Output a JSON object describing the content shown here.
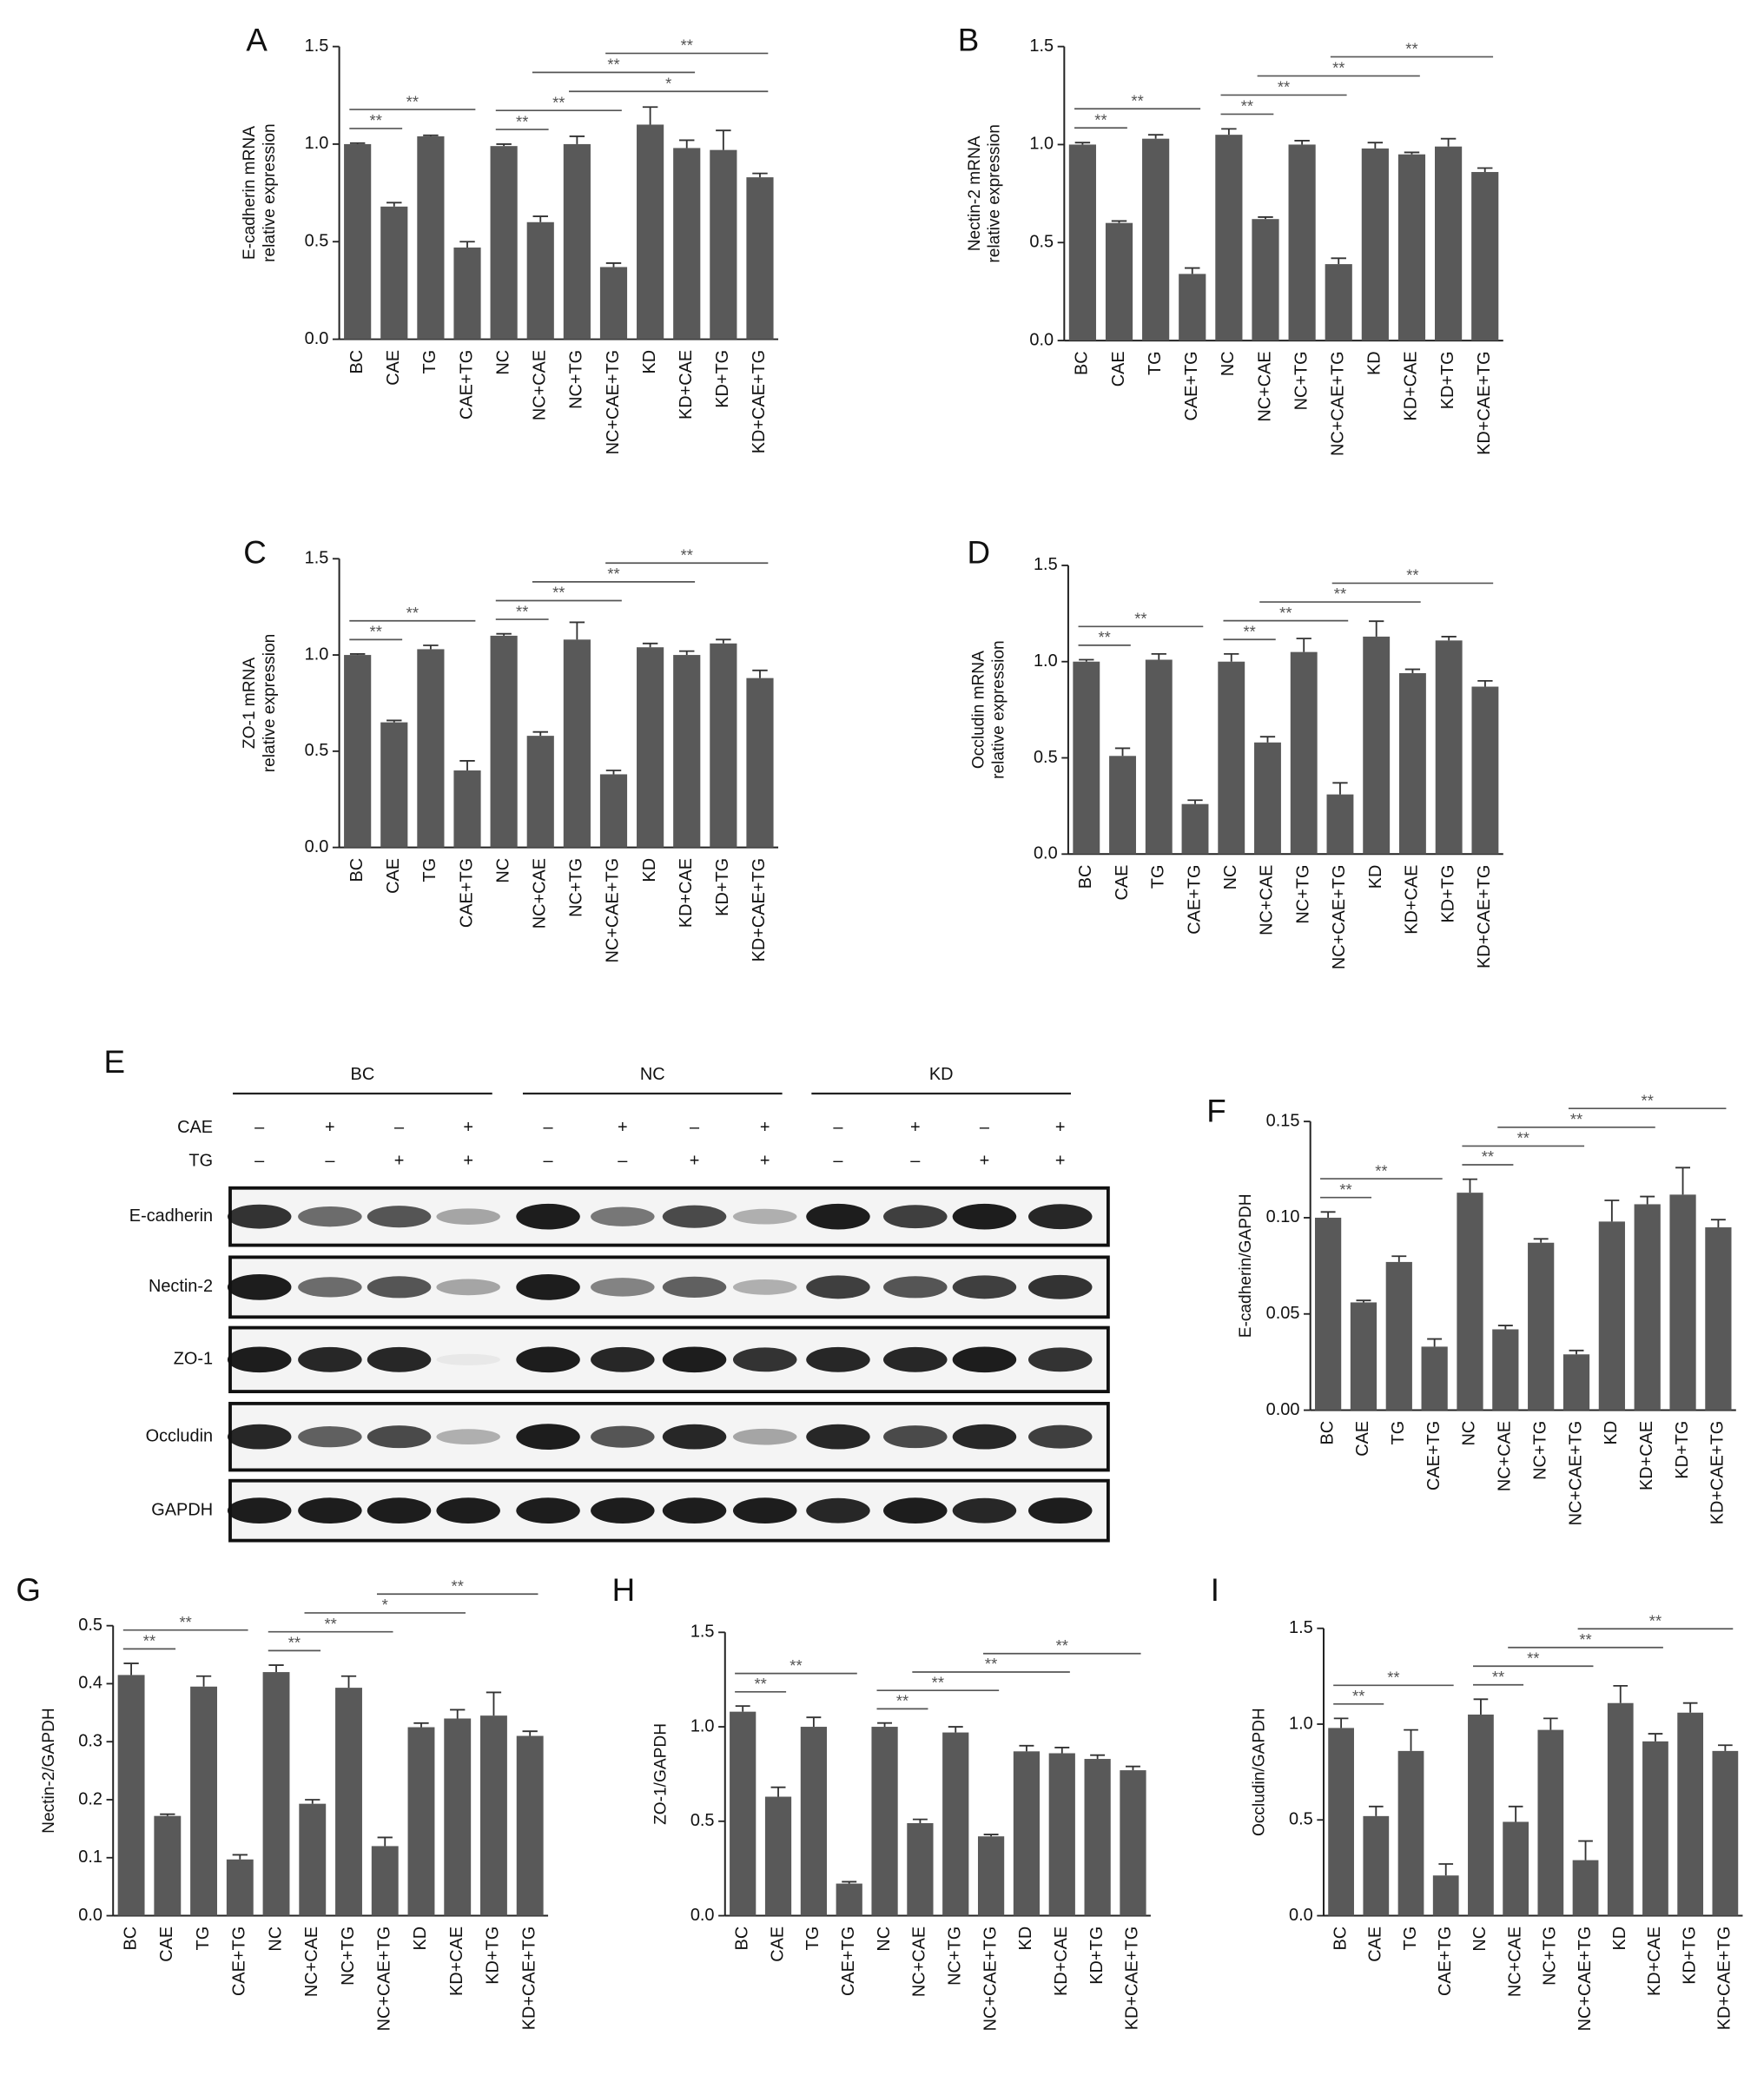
{
  "chart_data": [
    {
      "type": "bar",
      "panel": "A",
      "y_label": [
        "E-cadherin mRNA",
        "relative expression"
      ],
      "categories": [
        "BC",
        "CAE",
        "TG",
        "CAE+TG",
        "NC",
        "NC+CAE",
        "NC+TG",
        "NC+CAE+TG",
        "KD",
        "KD+CAE",
        "KD+TG",
        "KD+CAE+TG"
      ],
      "values": [
        1.0,
        0.68,
        1.04,
        0.47,
        0.99,
        0.6,
        1.0,
        0.37,
        1.1,
        0.98,
        0.97,
        0.83
      ],
      "errors": [
        0.005,
        0.02,
        0.005,
        0.03,
        0.01,
        0.03,
        0.04,
        0.02,
        0.09,
        0.04,
        0.1,
        0.02
      ],
      "color": "#595959",
      "ylim": [
        0,
        1.5
      ],
      "yticks": [
        {
          "value": 0,
          "label": "0.0"
        },
        0.5,
        {
          "value": 1,
          "label": "1.0"
        },
        1.5
      ],
      "significance": [
        {
          "from": "BC",
          "to": "CAE",
          "label": "**"
        },
        {
          "from": "BC",
          "to": "CAE+TG",
          "label": "**"
        },
        {
          "from": "NC",
          "to": "NC+CAE",
          "label": "**"
        },
        {
          "from": "NC",
          "to": "NC+CAE+TG",
          "label": "**"
        },
        {
          "from": "NC+TG",
          "to": "KD+CAE+TG",
          "label": "*"
        },
        {
          "from": "NC+CAE",
          "to": "KD+CAE",
          "label": "**"
        },
        {
          "from": "NC+CAE+TG",
          "to": "KD+CAE+TG",
          "label": "**"
        }
      ]
    },
    {
      "type": "bar",
      "panel": "B",
      "y_label": [
        "Nectin-2 mRNA",
        "relative expression"
      ],
      "categories": [
        "BC",
        "CAE",
        "TG",
        "CAE+TG",
        "NC",
        "NC+CAE",
        "NC+TG",
        "NC+CAE+TG",
        "KD",
        "KD+CAE",
        "KD+TG",
        "KD+CAE+TG"
      ],
      "values": [
        1.0,
        0.6,
        1.03,
        0.34,
        1.05,
        0.62,
        1.0,
        0.39,
        0.98,
        0.95,
        0.99,
        0.86
      ],
      "errors": [
        0.01,
        0.01,
        0.02,
        0.03,
        0.03,
        0.01,
        0.02,
        0.03,
        0.03,
        0.01,
        0.04,
        0.02
      ],
      "color": "#595959",
      "ylim": [
        0,
        1.5
      ],
      "yticks": [
        {
          "value": 0,
          "label": "0.0"
        },
        0.5,
        {
          "value": 1,
          "label": "1.0"
        },
        1.5
      ],
      "significance": [
        {
          "from": "BC",
          "to": "CAE",
          "label": "**"
        },
        {
          "from": "BC",
          "to": "CAE+TG",
          "label": "**"
        },
        {
          "from": "NC",
          "to": "NC+CAE",
          "label": "**"
        },
        {
          "from": "NC",
          "to": "NC+CAE+TG",
          "label": "**"
        },
        {
          "from": "NC+CAE",
          "to": "KD+CAE",
          "label": "**"
        },
        {
          "from": "NC+CAE+TG",
          "to": "KD+CAE+TG",
          "label": "**"
        }
      ]
    },
    {
      "type": "bar",
      "panel": "C",
      "y_label": [
        "ZO-1 mRNA",
        "relative expression"
      ],
      "categories": [
        "BC",
        "CAE",
        "TG",
        "CAE+TG",
        "NC",
        "NC+CAE",
        "NC+TG",
        "NC+CAE+TG",
        "KD",
        "KD+CAE",
        "KD+TG",
        "KD+CAE+TG"
      ],
      "values": [
        1.0,
        0.65,
        1.03,
        0.4,
        1.1,
        0.58,
        1.08,
        0.38,
        1.04,
        1.0,
        1.06,
        0.88
      ],
      "errors": [
        0.005,
        0.01,
        0.02,
        0.05,
        0.01,
        0.02,
        0.09,
        0.02,
        0.02,
        0.02,
        0.02,
        0.04
      ],
      "color": "#595959",
      "ylim": [
        0,
        1.5
      ],
      "yticks": [
        {
          "value": 0,
          "label": "0.0"
        },
        0.5,
        {
          "value": 1,
          "label": "1.0"
        },
        1.5
      ],
      "significance": [
        {
          "from": "BC",
          "to": "CAE",
          "label": "**"
        },
        {
          "from": "BC",
          "to": "CAE+TG",
          "label": "**"
        },
        {
          "from": "NC",
          "to": "NC+CAE",
          "label": "**"
        },
        {
          "from": "NC",
          "to": "NC+CAE+TG",
          "label": "**"
        },
        {
          "from": "NC+CAE",
          "to": "KD+CAE",
          "label": "**"
        },
        {
          "from": "NC+CAE+TG",
          "to": "KD+CAE+TG",
          "label": "**"
        }
      ]
    },
    {
      "type": "bar",
      "panel": "D",
      "y_label": [
        "Occludin mRNA",
        "relative expression"
      ],
      "categories": [
        "BC",
        "CAE",
        "TG",
        "CAE+TG",
        "NC",
        "NC+CAE",
        "NC+TG",
        "NC+CAE+TG",
        "KD",
        "KD+CAE",
        "KD+TG",
        "KD+CAE+TG"
      ],
      "values": [
        1.0,
        0.51,
        1.01,
        0.26,
        1.0,
        0.58,
        1.05,
        0.31,
        1.13,
        0.94,
        1.11,
        0.87
      ],
      "errors": [
        0.01,
        0.04,
        0.03,
        0.02,
        0.04,
        0.03,
        0.07,
        0.06,
        0.08,
        0.02,
        0.02,
        0.03
      ],
      "color": "#595959",
      "ylim": [
        0,
        1.5
      ],
      "yticks": [
        {
          "value": 0,
          "label": "0.0"
        },
        0.5,
        {
          "value": 1,
          "label": "1.0"
        },
        1.5
      ],
      "significance": [
        {
          "from": "BC",
          "to": "CAE",
          "label": "**"
        },
        {
          "from": "BC",
          "to": "CAE+TG",
          "label": "**"
        },
        {
          "from": "NC",
          "to": "NC+CAE",
          "label": "**"
        },
        {
          "from": "NC",
          "to": "NC+CAE+TG",
          "label": "**"
        },
        {
          "from": "NC+CAE",
          "to": "KD+CAE",
          "label": "**"
        },
        {
          "from": "NC+CAE+TG",
          "to": "KD+CAE+TG",
          "label": "**"
        }
      ]
    },
    {
      "type": "bar",
      "panel": "F",
      "y_label": [
        "E-cadherin/GAPDH"
      ],
      "categories": [
        "BC",
        "CAE",
        "TG",
        "CAE+TG",
        "NC",
        "NC+CAE",
        "NC+TG",
        "NC+CAE+TG",
        "KD",
        "KD+CAE",
        "KD+TG",
        "KD+CAE+TG"
      ],
      "values": [
        0.1,
        0.056,
        0.077,
        0.033,
        0.113,
        0.042,
        0.087,
        0.029,
        0.098,
        0.107,
        0.112,
        0.095
      ],
      "errors": [
        0.003,
        0.001,
        0.003,
        0.004,
        0.007,
        0.002,
        0.002,
        0.002,
        0.011,
        0.004,
        0.014,
        0.004
      ],
      "color": "#595959",
      "ylim": [
        0,
        0.15
      ],
      "yticks": [
        {
          "value": 0,
          "label": "0.00"
        },
        0.05,
        {
          "value": 0.1,
          "label": "0.10"
        },
        0.15
      ],
      "significance": [
        {
          "from": "BC",
          "to": "CAE",
          "label": "**"
        },
        {
          "from": "BC",
          "to": "CAE+TG",
          "label": "**"
        },
        {
          "from": "NC",
          "to": "NC+CAE",
          "label": "**"
        },
        {
          "from": "NC",
          "to": "NC+CAE+TG",
          "label": "**"
        },
        {
          "from": "NC+CAE",
          "to": "KD+CAE",
          "label": "**"
        },
        {
          "from": "NC+CAE+TG",
          "to": "KD+CAE+TG",
          "label": "**"
        }
      ]
    },
    {
      "type": "bar",
      "panel": "G",
      "y_label": [
        "Nectin-2/GAPDH"
      ],
      "categories": [
        "BC",
        "CAE",
        "TG",
        "CAE+TG",
        "NC",
        "NC+CAE",
        "NC+TG",
        "NC+CAE+TG",
        "KD",
        "KD+CAE",
        "KD+TG",
        "KD+CAE+TG"
      ],
      "values": [
        0.415,
        0.172,
        0.395,
        0.097,
        0.42,
        0.193,
        0.393,
        0.12,
        0.325,
        0.34,
        0.345,
        0.31
      ],
      "errors": [
        0.02,
        0.003,
        0.018,
        0.008,
        0.012,
        0.007,
        0.02,
        0.015,
        0.007,
        0.015,
        0.04,
        0.008
      ],
      "color": "#595959",
      "ylim": [
        0,
        0.5
      ],
      "yticks": [
        {
          "value": 0,
          "label": "0.0"
        },
        0.1,
        0.2,
        0.3,
        0.4,
        0.5
      ],
      "significance": [
        {
          "from": "BC",
          "to": "CAE",
          "label": "**"
        },
        {
          "from": "BC",
          "to": "CAE+TG",
          "label": "**"
        },
        {
          "from": "NC",
          "to": "NC+CAE",
          "label": "**"
        },
        {
          "from": "NC",
          "to": "NC+CAE+TG",
          "label": "**"
        },
        {
          "from": "NC+CAE",
          "to": "KD+CAE",
          "label": "*"
        },
        {
          "from": "NC+CAE+TG",
          "to": "KD+CAE+TG",
          "label": "**"
        }
      ]
    },
    {
      "type": "bar",
      "panel": "H",
      "y_label": [
        "ZO-1/GAPDH"
      ],
      "categories": [
        "BC",
        "CAE",
        "TG",
        "CAE+TG",
        "NC",
        "NC+CAE",
        "NC+TG",
        "NC+CAE+TG",
        "KD",
        "KD+CAE",
        "KD+TG",
        "KD+CAE+TG"
      ],
      "values": [
        1.08,
        0.63,
        1.0,
        0.17,
        1.0,
        0.49,
        0.97,
        0.42,
        0.87,
        0.86,
        0.83,
        0.77
      ],
      "errors": [
        0.03,
        0.05,
        0.05,
        0.01,
        0.02,
        0.02,
        0.03,
        0.01,
        0.03,
        0.03,
        0.02,
        0.02
      ],
      "color": "#595959",
      "ylim": [
        0,
        1.5
      ],
      "yticks": [
        {
          "value": 0,
          "label": "0.0"
        },
        0.5,
        {
          "value": 1,
          "label": "1.0"
        },
        1.5
      ],
      "significance": [
        {
          "from": "BC",
          "to": "CAE",
          "label": "**"
        },
        {
          "from": "BC",
          "to": "CAE+TG",
          "label": "**"
        },
        {
          "from": "NC",
          "to": "NC+CAE",
          "label": "**"
        },
        {
          "from": "NC",
          "to": "NC+CAE+TG",
          "label": "**"
        },
        {
          "from": "NC+CAE",
          "to": "KD+CAE",
          "label": "**"
        },
        {
          "from": "NC+CAE+TG",
          "to": "KD+CAE+TG",
          "label": "**"
        }
      ]
    },
    {
      "type": "bar",
      "panel": "I",
      "y_label": [
        "Occludin/GAPDH"
      ],
      "categories": [
        "BC",
        "CAE",
        "TG",
        "CAE+TG",
        "NC",
        "NC+CAE",
        "NC+TG",
        "NC+CAE+TG",
        "KD",
        "KD+CAE",
        "KD+TG",
        "KD+CAE+TG"
      ],
      "values": [
        0.98,
        0.52,
        0.86,
        0.21,
        1.05,
        0.49,
        0.97,
        0.29,
        1.11,
        0.91,
        1.06,
        0.86
      ],
      "errors": [
        0.05,
        0.05,
        0.11,
        0.06,
        0.08,
        0.08,
        0.06,
        0.1,
        0.09,
        0.04,
        0.05,
        0.03
      ],
      "color": "#595959",
      "ylim": [
        0,
        1.5
      ],
      "yticks": [
        {
          "value": 0,
          "label": "0.0"
        },
        0.5,
        {
          "value": 1,
          "label": "1.0"
        },
        1.5
      ],
      "significance": [
        {
          "from": "BC",
          "to": "CAE",
          "label": "**"
        },
        {
          "from": "BC",
          "to": "CAE+TG",
          "label": "**"
        },
        {
          "from": "NC",
          "to": "NC+CAE",
          "label": "**"
        },
        {
          "from": "NC",
          "to": "NC+CAE+TG",
          "label": "**"
        },
        {
          "from": "NC+CAE",
          "to": "KD+CAE",
          "label": "**"
        },
        {
          "from": "NC+CAE+TG",
          "to": "KD+CAE+TG",
          "label": "**"
        }
      ]
    }
  ],
  "blot": {
    "panel": "E",
    "groups": [
      "BC",
      "NC",
      "KD"
    ],
    "treatments": [
      {
        "name": "CAE",
        "signs": [
          "–",
          "+",
          "–",
          "+",
          "–",
          "+",
          "–",
          "+",
          "–",
          "+",
          "–",
          "+"
        ]
      },
      {
        "name": "TG",
        "signs": [
          "–",
          "–",
          "+",
          "+",
          "–",
          "–",
          "+",
          "+",
          "–",
          "–",
          "+",
          "+"
        ]
      }
    ],
    "rows": [
      "E-cadherin",
      "Nectin-2",
      "ZO-1",
      "Occludin",
      "GAPDH"
    ]
  }
}
